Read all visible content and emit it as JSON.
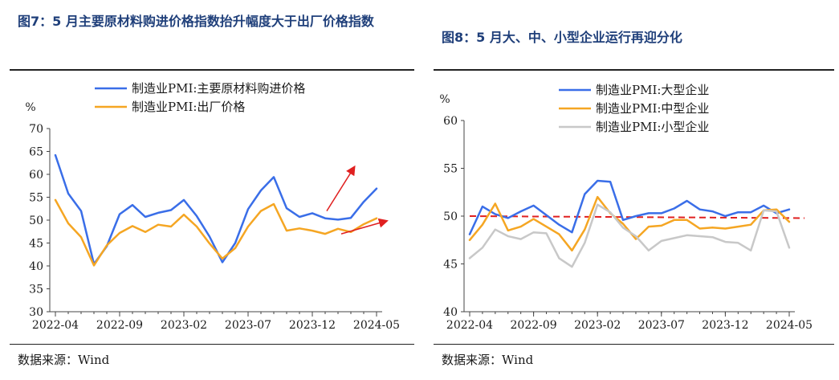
{
  "figures": [
    {
      "title": "图7：5 月主要原材料购进价格指数抬升幅度大于出厂价格指数",
      "source": "数据来源：Wind"
    },
    {
      "title": "图8：5 月大、中、小型企业运行再迎分化",
      "source": "数据来源：Wind"
    }
  ],
  "chart_data": [
    {
      "type": "line",
      "title": "图7：5 月主要原材料购进价格指数抬升幅度大于出厂价格指数",
      "ylabel": "%",
      "ylim": [
        30,
        70
      ],
      "yticks": [
        "30",
        "35",
        "40",
        "45",
        "50",
        "55",
        "60",
        "65",
        "70"
      ],
      "xtick_labels": [
        "2022-04",
        "2022-09",
        "2023-02",
        "2023-07",
        "2023-12",
        "2024-05"
      ],
      "x": [
        "2022-04",
        "2022-05",
        "2022-06",
        "2022-07",
        "2022-08",
        "2022-09",
        "2022-10",
        "2022-11",
        "2022-12",
        "2023-01",
        "2023-02",
        "2023-03",
        "2023-04",
        "2023-05",
        "2023-06",
        "2023-07",
        "2023-08",
        "2023-09",
        "2023-10",
        "2023-11",
        "2023-12",
        "2024-01",
        "2024-02",
        "2024-03",
        "2024-04",
        "2024-05"
      ],
      "legend_position": "top-left",
      "grid": false,
      "series": [
        {
          "name": "制造业PMI:主要原材料购进价格",
          "color": "#3a6ee8",
          "values": [
            64.2,
            55.8,
            52.0,
            40.4,
            44.3,
            51.3,
            53.3,
            50.7,
            51.6,
            52.2,
            54.4,
            50.9,
            46.4,
            40.8,
            45.0,
            52.4,
            56.5,
            59.4,
            52.6,
            50.7,
            51.5,
            50.4,
            50.1,
            50.5,
            54.0,
            56.9
          ]
        },
        {
          "name": "制造业PMI:出厂价格",
          "color": "#f5a623",
          "values": [
            54.4,
            49.3,
            46.3,
            40.1,
            44.5,
            47.2,
            48.7,
            47.4,
            49.0,
            48.6,
            51.2,
            48.6,
            44.9,
            41.6,
            43.9,
            48.6,
            52.0,
            53.5,
            47.7,
            48.2,
            47.7,
            47.0,
            48.1,
            47.4,
            49.1,
            50.4
          ]
        }
      ],
      "annotations": [
        {
          "type": "arrow",
          "color": "#e02020",
          "description": "upward arrow near raw-material price series end"
        },
        {
          "type": "arrow",
          "color": "#e02020",
          "description": "upward arrow near ex-factory price series end"
        }
      ]
    },
    {
      "type": "line",
      "title": "图8：5 月大、中、小型企业运行再迎分化",
      "ylabel": "%",
      "ylim": [
        40,
        60
      ],
      "yticks": [
        "40",
        "45",
        "50",
        "55",
        "60"
      ],
      "xtick_labels": [
        "2022-04",
        "2022-09",
        "2023-02",
        "2023-07",
        "2023-12",
        "2024-05"
      ],
      "x": [
        "2022-04",
        "2022-05",
        "2022-06",
        "2022-07",
        "2022-08",
        "2022-09",
        "2022-10",
        "2022-11",
        "2022-12",
        "2023-01",
        "2023-02",
        "2023-03",
        "2023-04",
        "2023-05",
        "2023-06",
        "2023-07",
        "2023-08",
        "2023-09",
        "2023-10",
        "2023-11",
        "2023-12",
        "2024-01",
        "2024-02",
        "2024-03",
        "2024-04",
        "2024-05"
      ],
      "legend_position": "top-center",
      "grid": false,
      "reference_line": {
        "y": 50,
        "color": "#e02020",
        "style": "dashed"
      },
      "series": [
        {
          "name": "制造业PMI:大型企业",
          "color": "#3a6ee8",
          "values": [
            48.1,
            51.0,
            50.2,
            49.8,
            50.5,
            51.1,
            50.1,
            49.1,
            48.3,
            52.3,
            53.7,
            53.6,
            49.6,
            50.0,
            50.3,
            50.3,
            50.8,
            51.6,
            50.7,
            50.5,
            50.0,
            50.4,
            50.4,
            51.1,
            50.3,
            50.7
          ]
        },
        {
          "name": "制造业PMI:中型企业",
          "color": "#f5a623",
          "values": [
            47.5,
            49.1,
            51.3,
            48.5,
            48.9,
            49.7,
            48.9,
            48.1,
            46.4,
            48.6,
            52.0,
            50.3,
            49.2,
            47.6,
            48.9,
            49.0,
            49.6,
            49.6,
            48.7,
            48.8,
            48.7,
            48.9,
            49.1,
            50.6,
            50.7,
            49.4
          ]
        },
        {
          "name": "制造业PMI:小型企业",
          "color": "#c8c8c8",
          "values": [
            45.6,
            46.7,
            48.6,
            47.9,
            47.6,
            48.3,
            48.2,
            45.6,
            44.7,
            47.2,
            51.2,
            50.4,
            48.8,
            47.9,
            46.4,
            47.4,
            47.7,
            48.0,
            47.9,
            47.8,
            47.3,
            47.2,
            46.4,
            50.6,
            50.5,
            46.7
          ]
        }
      ]
    }
  ]
}
